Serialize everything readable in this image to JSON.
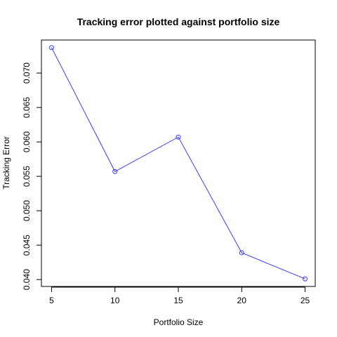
{
  "chart_data": {
    "type": "line",
    "title": "Tracking error plotted against portfolio size",
    "xlabel": "Portfolio Size",
    "ylabel": "Tracking Error",
    "x": [
      5,
      10,
      15,
      20,
      25
    ],
    "series": [
      {
        "values": [
          0.0737,
          0.0557,
          0.0607,
          0.0439,
          0.0401
        ]
      }
    ],
    "xlim": [
      4.2,
      25.8
    ],
    "ylim": [
      0.039,
      0.0748
    ],
    "xticks": [
      5,
      10,
      15,
      20,
      25
    ],
    "xtick_labels": [
      "5",
      "10",
      "15",
      "20",
      "25"
    ],
    "yticks": [
      0.04,
      0.045,
      0.05,
      0.055,
      0.06,
      0.065,
      0.07
    ],
    "ytick_labels": [
      "0.040",
      "0.045",
      "0.050",
      "0.055",
      "0.060",
      "0.065",
      "0.070"
    ],
    "grid": false,
    "line_color": "#3b3bff",
    "marker": "open-circle"
  }
}
